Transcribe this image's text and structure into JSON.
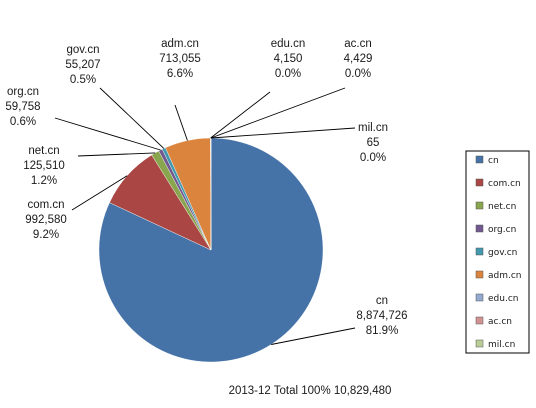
{
  "chart_data": {
    "type": "pie",
    "title": "",
    "footer": "2013-12 Total 100%  10,829,480",
    "legend_position": "right",
    "series": [
      {
        "name": "cn",
        "value": 8874726,
        "value_label": "8,874,726",
        "percent_label": "81.9%",
        "color": "#4572A7"
      },
      {
        "name": "com.cn",
        "value": 992580,
        "value_label": "992,580",
        "percent_label": "9.2%",
        "color": "#AA4643"
      },
      {
        "name": "net.cn",
        "value": 125510,
        "value_label": "125,510",
        "percent_label": "1.2%",
        "color": "#89A54E"
      },
      {
        "name": "org.cn",
        "value": 59758,
        "value_label": "59,758",
        "percent_label": "0.6%",
        "color": "#71588F"
      },
      {
        "name": "gov.cn",
        "value": 55207,
        "value_label": "55,207",
        "percent_label": "0.5%",
        "color": "#4198AF"
      },
      {
        "name": "adm.cn",
        "value": 713055,
        "value_label": "713,055",
        "percent_label": "6.6%",
        "color": "#DB843D"
      },
      {
        "name": "edu.cn",
        "value": 4150,
        "value_label": "4,150",
        "percent_label": "0.0%",
        "color": "#93A9CF"
      },
      {
        "name": "ac.cn",
        "value": 4429,
        "value_label": "4,429",
        "percent_label": "0.0%",
        "color": "#D19392"
      },
      {
        "name": "mil.cn",
        "value": 65,
        "value_label": "65",
        "percent_label": "0.0%",
        "color": "#B9CD96"
      }
    ]
  }
}
